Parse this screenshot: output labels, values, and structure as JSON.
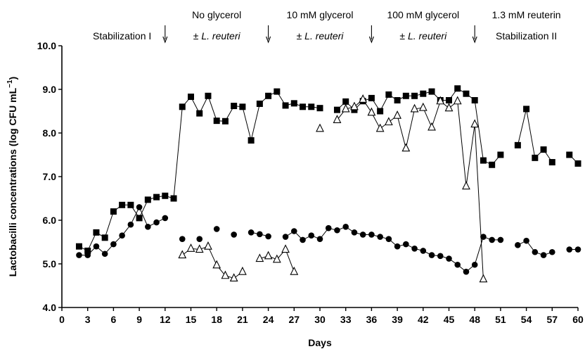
{
  "chart_data": {
    "type": "line",
    "xlabel": "Days",
    "ylabel": "Lactobacilli concentrations  (log CFU mL",
    "ylabel_sup": "−1",
    "ylabel_close": ")",
    "xlim": [
      0,
      60
    ],
    "ylim": [
      4.0,
      10.0
    ],
    "xticks": [
      0,
      3,
      6,
      9,
      12,
      15,
      18,
      21,
      24,
      27,
      30,
      33,
      36,
      39,
      42,
      45,
      48,
      51,
      54,
      57,
      60
    ],
    "yticks": [
      4.0,
      5.0,
      6.0,
      7.0,
      8.0,
      9.0,
      10.0
    ],
    "ytick_labels": [
      "4.0",
      "5.0",
      "6.0",
      "7.0",
      "8.0",
      "9.0",
      "10.0"
    ],
    "grid": false,
    "phases": [
      {
        "line1": "",
        "line2": "Stabilization I",
        "italic": ""
      },
      {
        "line1": "No glycerol",
        "line2": "± ",
        "italic": "L. reuteri"
      },
      {
        "line1": "10 mM glycerol",
        "line2": "± ",
        "italic": "L. reuteri"
      },
      {
        "line1": "100 mM glycerol",
        "line2": "± ",
        "italic": "L. reuteri"
      },
      {
        "line1": "1.3 mM reuterin",
        "line2": "Stabilization II",
        "italic": ""
      }
    ],
    "arrows_at_days": [
      12,
      24,
      36,
      48
    ],
    "series": [
      {
        "marker": "square",
        "points": [
          [
            2,
            5.4
          ],
          [
            3,
            5.3
          ],
          [
            4,
            5.72
          ],
          [
            5,
            5.6
          ],
          [
            6,
            6.2
          ],
          [
            7,
            6.35
          ],
          [
            8,
            6.35
          ],
          [
            9,
            6.05
          ],
          [
            10,
            6.47
          ],
          [
            11,
            6.53
          ],
          [
            12,
            6.56
          ],
          [
            13,
            6.5
          ],
          [
            14,
            8.6
          ],
          [
            15,
            8.83
          ],
          [
            16,
            8.45
          ],
          [
            17,
            8.85
          ],
          [
            18,
            8.28
          ],
          [
            19,
            8.27
          ],
          [
            20,
            8.62
          ],
          [
            21,
            8.6
          ],
          [
            22,
            7.83
          ],
          [
            23,
            8.67
          ],
          [
            24,
            8.85
          ],
          [
            25,
            8.95
          ],
          [
            26,
            8.63
          ],
          [
            27,
            8.68
          ],
          [
            28,
            8.6
          ],
          [
            29,
            8.6
          ],
          [
            30,
            8.57
          ],
          [
            32,
            8.53
          ],
          [
            33,
            8.72
          ],
          [
            34,
            8.53
          ],
          [
            35,
            8.73
          ],
          [
            36,
            8.8
          ],
          [
            37,
            8.5
          ],
          [
            38,
            8.88
          ],
          [
            39,
            8.75
          ],
          [
            40,
            8.85
          ],
          [
            41,
            8.85
          ],
          [
            42,
            8.9
          ],
          [
            43,
            8.95
          ],
          [
            44,
            8.75
          ],
          [
            45,
            8.75
          ],
          [
            46,
            9.02
          ],
          [
            47,
            8.9
          ],
          [
            48,
            8.75
          ],
          [
            49,
            7.37
          ],
          [
            50,
            7.27
          ],
          [
            51,
            7.5
          ],
          [
            53,
            7.72
          ],
          [
            54,
            8.55
          ],
          [
            55,
            7.43
          ],
          [
            56,
            7.62
          ],
          [
            57,
            7.33
          ],
          [
            59,
            7.5
          ],
          [
            60,
            7.3
          ]
        ]
      },
      {
        "marker": "circle",
        "points": [
          [
            2,
            5.2
          ],
          [
            3,
            5.2
          ],
          [
            4,
            5.4
          ],
          [
            5,
            5.23
          ],
          [
            6,
            5.45
          ],
          [
            7,
            5.65
          ],
          [
            8,
            5.9
          ],
          [
            9,
            6.3
          ],
          [
            10,
            5.85
          ],
          [
            11,
            5.95
          ],
          [
            12,
            6.05
          ],
          [
            14,
            5.57
          ],
          [
            16,
            5.57
          ],
          [
            18,
            5.8
          ],
          [
            20,
            5.67
          ],
          [
            22,
            5.72
          ],
          [
            23,
            5.68
          ],
          [
            24,
            5.63
          ],
          [
            26,
            5.62
          ],
          [
            27,
            5.75
          ],
          [
            28,
            5.55
          ],
          [
            29,
            5.65
          ],
          [
            30,
            5.57
          ],
          [
            31,
            5.82
          ],
          [
            32,
            5.77
          ],
          [
            33,
            5.85
          ],
          [
            34,
            5.72
          ],
          [
            35,
            5.67
          ],
          [
            36,
            5.67
          ],
          [
            37,
            5.62
          ],
          [
            38,
            5.57
          ],
          [
            39,
            5.4
          ],
          [
            40,
            5.45
          ],
          [
            41,
            5.35
          ],
          [
            42,
            5.3
          ],
          [
            43,
            5.2
          ],
          [
            44,
            5.18
          ],
          [
            45,
            5.12
          ],
          [
            46,
            4.98
          ],
          [
            47,
            4.82
          ],
          [
            48,
            4.98
          ],
          [
            49,
            5.62
          ],
          [
            50,
            5.55
          ],
          [
            51,
            5.55
          ],
          [
            53,
            5.43
          ],
          [
            54,
            5.53
          ],
          [
            55,
            5.27
          ],
          [
            56,
            5.2
          ],
          [
            57,
            5.27
          ],
          [
            59,
            5.33
          ],
          [
            60,
            5.33
          ]
        ]
      },
      {
        "marker": "triangle",
        "points": [
          [
            14,
            5.2
          ],
          [
            15,
            5.35
          ],
          [
            16,
            5.33
          ],
          [
            17,
            5.4
          ],
          [
            18,
            4.97
          ],
          [
            19,
            4.73
          ],
          [
            20,
            4.67
          ],
          [
            21,
            4.82
          ],
          [
            23,
            5.12
          ],
          [
            24,
            5.18
          ],
          [
            25,
            5.1
          ],
          [
            26,
            5.33
          ],
          [
            27,
            4.82
          ],
          [
            30,
            8.1
          ],
          [
            32,
            8.3
          ],
          [
            33,
            8.55
          ],
          [
            34,
            8.6
          ],
          [
            35,
            8.77
          ],
          [
            36,
            8.47
          ],
          [
            37,
            8.1
          ],
          [
            38,
            8.25
          ],
          [
            39,
            8.4
          ],
          [
            40,
            7.65
          ],
          [
            41,
            8.55
          ],
          [
            42,
            8.58
          ],
          [
            43,
            8.13
          ],
          [
            44,
            8.73
          ],
          [
            45,
            8.57
          ],
          [
            46,
            8.73
          ],
          [
            47,
            6.78
          ],
          [
            48,
            8.2
          ],
          [
            49,
            4.65
          ]
        ]
      }
    ],
    "broken_segments": {
      "square": [
        [
          30,
          32
        ],
        [
          51,
          53
        ],
        [
          57,
          59
        ]
      ],
      "circle": [
        [
          12,
          14
        ],
        [
          14,
          16
        ],
        [
          16,
          18
        ],
        [
          18,
          20
        ],
        [
          20,
          22
        ],
        [
          24,
          26
        ],
        [
          51,
          53
        ],
        [
          57,
          59
        ]
      ],
      "triangle": [
        [
          21,
          23
        ],
        [
          27,
          30
        ],
        [
          30,
          32
        ]
      ]
    }
  }
}
